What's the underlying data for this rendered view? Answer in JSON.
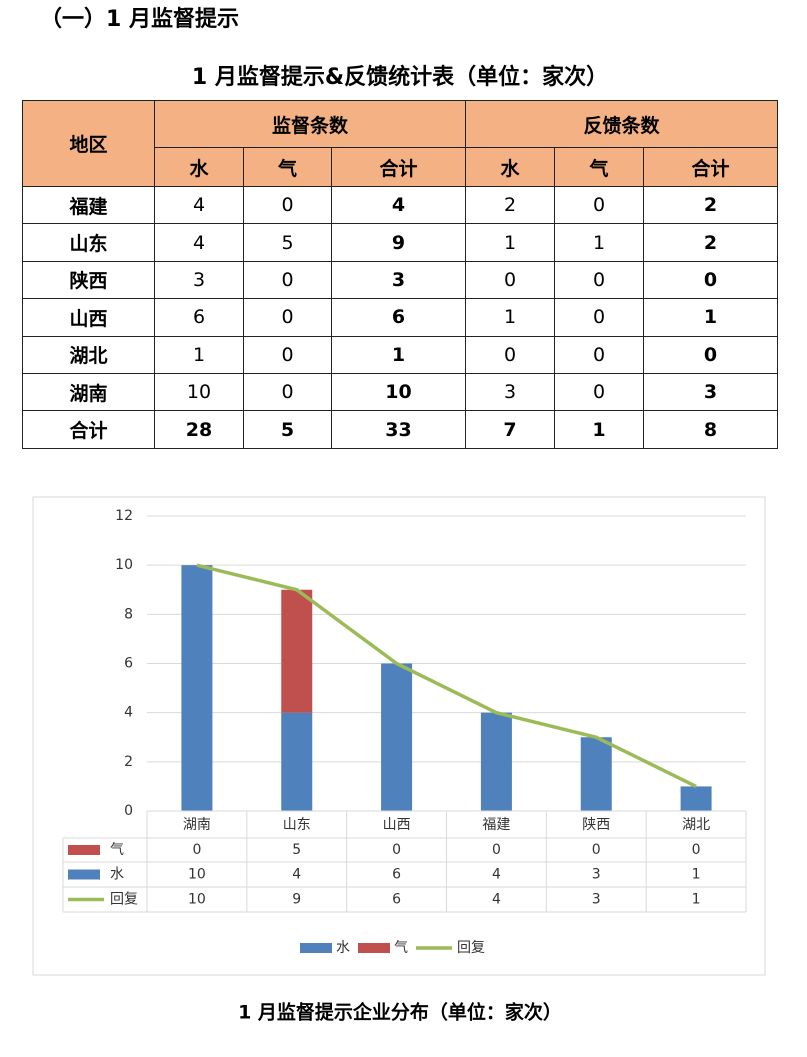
{
  "heading": "（一）1 月监督提示",
  "table": {
    "title": "1 月监督提示&反馈统计表（单位：家次）",
    "columns": [
      "地区",
      "监督条数",
      "反馈条数"
    ],
    "subcolumns": [
      "水",
      "气",
      "合计",
      "水",
      "气",
      "合计"
    ],
    "rows": [
      [
        "福建",
        4,
        0,
        4,
        2,
        0,
        2
      ],
      [
        "山东",
        4,
        5,
        9,
        1,
        1,
        2
      ],
      [
        "陕西",
        3,
        0,
        3,
        0,
        0,
        0
      ],
      [
        "山西",
        6,
        0,
        6,
        1,
        0,
        1
      ],
      [
        "湖北",
        1,
        0,
        1,
        0,
        0,
        0
      ],
      [
        "湖南",
        10,
        0,
        10,
        3,
        0,
        3
      ],
      [
        "合计",
        28,
        5,
        33,
        7,
        1,
        8
      ]
    ]
  },
  "chart_data": {
    "type": "bar",
    "stacked": true,
    "categories": [
      "湖南",
      "山东",
      "山西",
      "福建",
      "陕西",
      "湖北"
    ],
    "series": [
      {
        "name": "水",
        "color": "#4f81bd",
        "values": [
          10,
          4,
          6,
          4,
          3,
          1
        ]
      },
      {
        "name": "气",
        "color": "#c0504d",
        "values": [
          0,
          5,
          0,
          0,
          0,
          0
        ]
      },
      {
        "name": "回复",
        "type": "line",
        "color": "#9bbb59",
        "values": [
          10,
          9,
          6,
          4,
          3,
          1
        ]
      }
    ],
    "ylim": [
      0,
      12
    ],
    "yticks": [
      0,
      2,
      4,
      6,
      8,
      10,
      12
    ],
    "grid": true,
    "legend": "bottom",
    "data_table": true
  },
  "caption": "1 月监督提示企业分布（单位：家次）"
}
